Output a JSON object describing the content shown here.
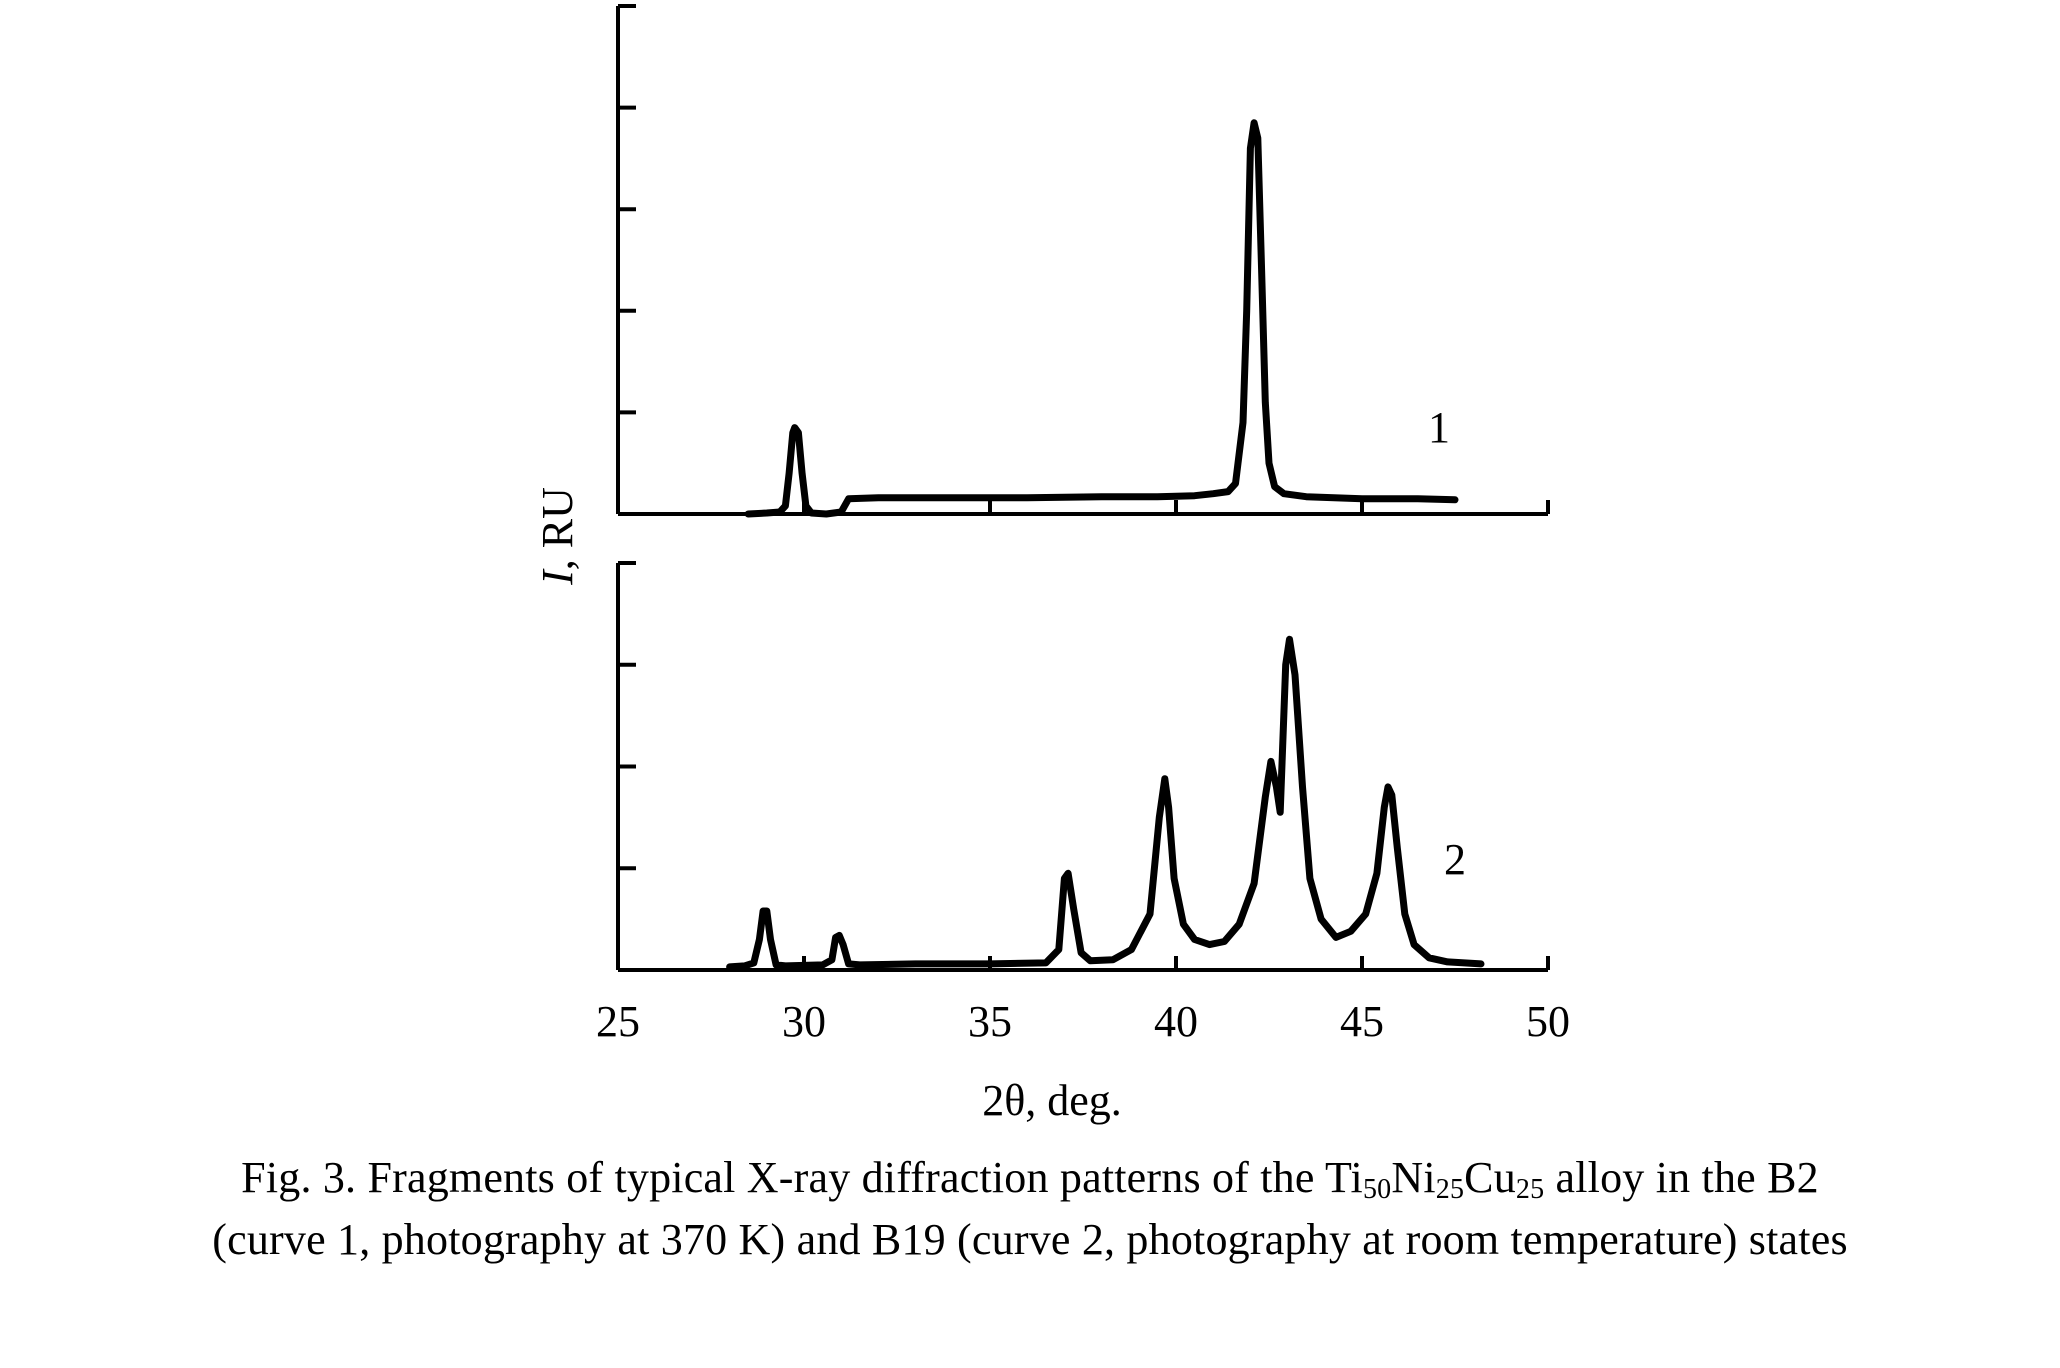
{
  "chart_data": [
    {
      "type": "line",
      "panel": "top",
      "series": [
        {
          "name": "1",
          "points": [
            [
              28.5,
              0.0
            ],
            [
              29.0,
              0.01
            ],
            [
              29.35,
              0.02
            ],
            [
              29.5,
              0.08
            ],
            [
              29.6,
              0.4
            ],
            [
              29.7,
              0.8
            ],
            [
              29.75,
              0.85
            ],
            [
              29.85,
              0.8
            ],
            [
              29.95,
              0.4
            ],
            [
              30.05,
              0.08
            ],
            [
              30.2,
              0.01
            ],
            [
              30.6,
              0.0
            ],
            [
              31.0,
              0.02
            ],
            [
              31.2,
              0.15
            ],
            [
              32.0,
              0.16
            ],
            [
              34.0,
              0.16
            ],
            [
              36.0,
              0.16
            ],
            [
              38.0,
              0.17
            ],
            [
              39.5,
              0.17
            ],
            [
              40.5,
              0.18
            ],
            [
              41.0,
              0.2
            ],
            [
              41.4,
              0.22
            ],
            [
              41.6,
              0.3
            ],
            [
              41.8,
              0.9
            ],
            [
              41.9,
              2.0
            ],
            [
              42.0,
              3.6
            ],
            [
              42.1,
              3.85
            ],
            [
              42.2,
              3.7
            ],
            [
              42.3,
              2.4
            ],
            [
              42.4,
              1.1
            ],
            [
              42.5,
              0.5
            ],
            [
              42.65,
              0.27
            ],
            [
              42.9,
              0.2
            ],
            [
              43.5,
              0.17
            ],
            [
              45.0,
              0.15
            ],
            [
              46.5,
              0.15
            ],
            [
              47.5,
              0.14
            ]
          ]
        }
      ],
      "xlim": [
        25,
        50
      ],
      "ylim": [
        0,
        5
      ],
      "grid": false
    },
    {
      "type": "line",
      "panel": "bottom",
      "series": [
        {
          "name": "2",
          "points": [
            [
              28.0,
              0.03
            ],
            [
              28.4,
              0.04
            ],
            [
              28.65,
              0.07
            ],
            [
              28.8,
              0.3
            ],
            [
              28.9,
              0.58
            ],
            [
              29.0,
              0.58
            ],
            [
              29.1,
              0.3
            ],
            [
              29.25,
              0.05
            ],
            [
              29.5,
              0.04
            ],
            [
              30.5,
              0.05
            ],
            [
              30.75,
              0.1
            ],
            [
              30.85,
              0.32
            ],
            [
              30.95,
              0.34
            ],
            [
              31.05,
              0.25
            ],
            [
              31.2,
              0.06
            ],
            [
              31.5,
              0.05
            ],
            [
              33.0,
              0.06
            ],
            [
              35.0,
              0.06
            ],
            [
              36.5,
              0.07
            ],
            [
              36.85,
              0.2
            ],
            [
              37.0,
              0.9
            ],
            [
              37.1,
              0.95
            ],
            [
              37.25,
              0.6
            ],
            [
              37.45,
              0.17
            ],
            [
              37.7,
              0.09
            ],
            [
              38.3,
              0.1
            ],
            [
              38.8,
              0.2
            ],
            [
              39.3,
              0.55
            ],
            [
              39.55,
              1.5
            ],
            [
              39.7,
              1.88
            ],
            [
              39.8,
              1.6
            ],
            [
              39.95,
              0.9
            ],
            [
              40.2,
              0.45
            ],
            [
              40.5,
              0.3
            ],
            [
              40.9,
              0.25
            ],
            [
              41.3,
              0.28
            ],
            [
              41.7,
              0.45
            ],
            [
              42.1,
              0.85
            ],
            [
              42.4,
              1.7
            ],
            [
              42.55,
              2.05
            ],
            [
              42.7,
              1.8
            ],
            [
              42.8,
              1.55
            ],
            [
              42.95,
              3.0
            ],
            [
              43.05,
              3.25
            ],
            [
              43.2,
              2.9
            ],
            [
              43.4,
              1.8
            ],
            [
              43.6,
              0.9
            ],
            [
              43.9,
              0.5
            ],
            [
              44.3,
              0.32
            ],
            [
              44.7,
              0.38
            ],
            [
              45.1,
              0.55
            ],
            [
              45.4,
              0.95
            ],
            [
              45.6,
              1.6
            ],
            [
              45.7,
              1.8
            ],
            [
              45.8,
              1.72
            ],
            [
              45.95,
              1.2
            ],
            [
              46.15,
              0.55
            ],
            [
              46.4,
              0.25
            ],
            [
              46.8,
              0.12
            ],
            [
              47.3,
              0.08
            ],
            [
              48.2,
              0.06
            ]
          ]
        }
      ],
      "xlim": [
        25,
        50
      ],
      "ylim": [
        0,
        4
      ],
      "grid": false
    }
  ],
  "axes": {
    "ylabel_italic": "I",
    "ylabel_rest": ", RU",
    "xlabel": "2θ, deg.",
    "xticks": [
      "25",
      "30",
      "35",
      "40",
      "45",
      "50"
    ]
  },
  "curve_labels": {
    "top": "1",
    "bottom": "2"
  },
  "caption": {
    "line1_part1": "Fig. 3. Fragments of typical X-ray diffraction patterns of the Ti",
    "sub1": "50",
    "part2": "Ni",
    "sub2": "25",
    "part3": "Cu",
    "sub3": "25",
    "part4": " alloy in the B2",
    "line2": "(curve 1, photography at 370 K) and B19 (curve 2, photography at room temperature) states"
  }
}
